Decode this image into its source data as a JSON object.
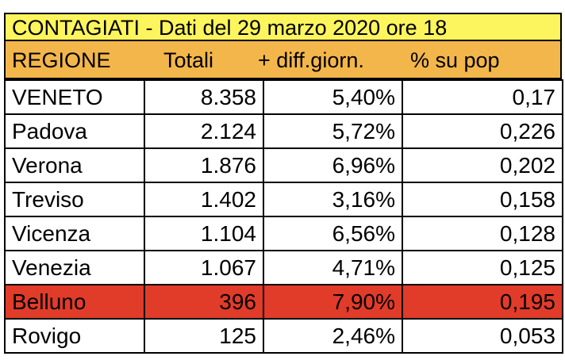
{
  "title": "CONTAGIATI - Dati del 29 marzo 2020 ore 18",
  "colors": {
    "title_bg": "#fdf55d",
    "header_bg": "#f3b64b",
    "highlight_bg": "#e13b2a"
  },
  "headers": [
    "REGIONE",
    "Totali",
    "+  diff.giorn.",
    "% su pop"
  ],
  "rows": [
    {
      "name": "VENETO",
      "totali": "8.358",
      "diff": "5,40%",
      "pop": "0,17",
      "highlight": false
    },
    {
      "name": "Padova",
      "totali": "2.124",
      "diff": "5,72%",
      "pop": "0,226",
      "highlight": false
    },
    {
      "name": "Verona",
      "totali": "1.876",
      "diff": "6,96%",
      "pop": "0,202",
      "highlight": false
    },
    {
      "name": "Treviso",
      "totali": "1.402",
      "diff": "3,16%",
      "pop": "0,158",
      "highlight": false
    },
    {
      "name": "Vicenza",
      "totali": "1.104",
      "diff": "6,56%",
      "pop": "0,128",
      "highlight": false
    },
    {
      "name": "Venezia",
      "totali": "1.067",
      "diff": "4,71%",
      "pop": "0,125",
      "highlight": false
    },
    {
      "name": "Belluno",
      "totali": "396",
      "diff": "7,90%",
      "pop": "0,195",
      "highlight": true
    },
    {
      "name": "Rovigo",
      "totali": "125",
      "diff": "2,46%",
      "pop": "0,053",
      "highlight": false
    }
  ]
}
